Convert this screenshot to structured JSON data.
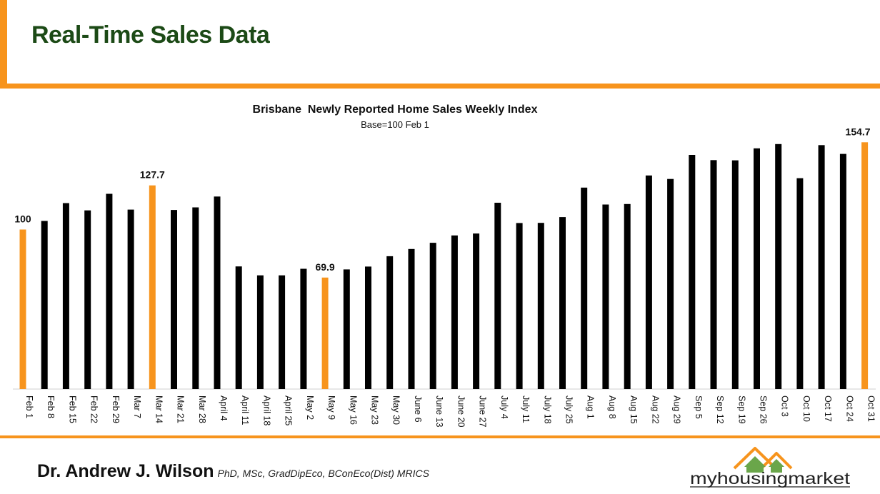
{
  "header": {
    "title": "Real-Time Sales Data"
  },
  "footer": {
    "author_name": "Dr. Andrew J. Wilson",
    "author_credentials": "PhD, MSc, GradDipEco, BConEco(Dist) MRICS",
    "logo_text": "myhousingmarket"
  },
  "colors": {
    "accent": "#f7941d",
    "title": "#1c4a16",
    "bar": "#000000",
    "highlight_bar": "#f7941d"
  },
  "chart_data": {
    "type": "bar",
    "title": "Brisbane  Newly Reported Home Sales Weekly Index",
    "subtitle": "Base=100 Feb 1",
    "xlabel": "",
    "ylabel": "",
    "ylim": [
      0,
      160
    ],
    "grid": false,
    "legend": "none",
    "categories": [
      "Feb 1",
      "Feb 8",
      "Feb 15",
      "Feb 22",
      "Feb 29",
      "Mar 7",
      "Mar 14",
      "Mar 21",
      "Mar 28",
      "April 4",
      "April 11",
      "April 18",
      "April 25",
      "May 2",
      "May 9",
      "May 16",
      "May 23",
      "May 30",
      "June 6",
      "June 13",
      "June 20",
      "June 27",
      "July 4",
      "July 11",
      "July 18",
      "July 25",
      "Aug 1",
      "Aug 8",
      "Aug 15",
      "Aug 22",
      "Aug 29",
      "Sep 5",
      "Sep 12",
      "Sep 19",
      "Sep 26",
      "Oct 3",
      "Oct 10",
      "Oct 17",
      "Oct 24",
      "Oct 31"
    ],
    "values": [
      100,
      105.4,
      116.6,
      112.0,
      122.4,
      112.5,
      127.7,
      112.3,
      113.9,
      120.7,
      76.9,
      71.3,
      71.3,
      75.4,
      69.9,
      75.0,
      76.8,
      83.3,
      87.8,
      91.7,
      96.3,
      97.5,
      116.8,
      104.1,
      104.2,
      107.8,
      126.3,
      115.7,
      116.0,
      133.9,
      131.7,
      146.8,
      143.5,
      143.4,
      150.9,
      153.6,
      132.2,
      152.9,
      147.4,
      154.7
    ],
    "highlighted": [
      "Feb 1",
      "Mar 14",
      "May 9",
      "Oct 31"
    ],
    "data_labels": [
      {
        "category": "Feb 1",
        "text": "100"
      },
      {
        "category": "Mar 14",
        "text": "127.7"
      },
      {
        "category": "May 9",
        "text": "69.9"
      },
      {
        "category": "Oct 31",
        "text": "154.7"
      }
    ]
  }
}
